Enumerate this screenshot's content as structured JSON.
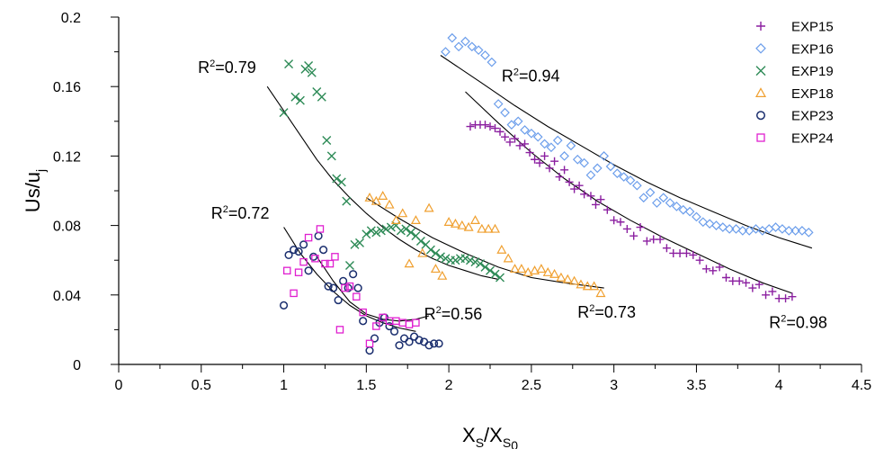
{
  "chart_data": {
    "type": "scatter",
    "xlabel": {
      "main": "X",
      "sub": "S",
      "sep": "/",
      "main2": "X",
      "sub2": "S",
      "subsub2": "0"
    },
    "ylabel": {
      "main": "Us/u",
      "sub": "j"
    },
    "xlim": [
      0,
      4.5
    ],
    "ylim": [
      0,
      0.2
    ],
    "x_ticks": [
      "0",
      "0.5",
      "1",
      "1.5",
      "2",
      "2.5",
      "3",
      "3.5",
      "4",
      "4.5"
    ],
    "y_ticks": [
      "0",
      "0.04",
      "0.08",
      "0.12",
      "0.16",
      "0.2"
    ],
    "grid": false,
    "legend_position": "top-right",
    "series": [
      {
        "name": "EXP15",
        "marker": "plus",
        "color": "#8B1FA0",
        "x": [
          2.13,
          2.16,
          2.19,
          2.22,
          2.25,
          2.28,
          2.31,
          2.34,
          2.37,
          2.4,
          2.43,
          2.46,
          2.49,
          2.52,
          2.55,
          2.58,
          2.61,
          2.64,
          2.67,
          2.7,
          2.73,
          2.76,
          2.79,
          2.82,
          2.86,
          2.89,
          2.92,
          2.96,
          3.0,
          3.04,
          3.08,
          3.12,
          3.16,
          3.2,
          3.24,
          3.28,
          3.32,
          3.36,
          3.4,
          3.44,
          3.48,
          3.52,
          3.56,
          3.6,
          3.64,
          3.68,
          3.72,
          3.76,
          3.8,
          3.84,
          3.88,
          3.92,
          3.96,
          4.0,
          4.04,
          4.08
        ],
        "y": [
          0.137,
          0.138,
          0.138,
          0.138,
          0.137,
          0.136,
          0.134,
          0.131,
          0.128,
          0.13,
          0.126,
          0.127,
          0.122,
          0.118,
          0.116,
          0.12,
          0.113,
          0.117,
          0.108,
          0.112,
          0.105,
          0.101,
          0.103,
          0.098,
          0.097,
          0.092,
          0.095,
          0.089,
          0.083,
          0.082,
          0.078,
          0.074,
          0.079,
          0.071,
          0.072,
          0.072,
          0.067,
          0.064,
          0.064,
          0.064,
          0.063,
          0.06,
          0.055,
          0.054,
          0.056,
          0.05,
          0.048,
          0.048,
          0.047,
          0.044,
          0.046,
          0.04,
          0.042,
          0.038,
          0.038,
          0.039
        ]
      },
      {
        "name": "EXP16",
        "marker": "diamond",
        "color": "#6C9EEB",
        "x": [
          1.98,
          2.02,
          2.06,
          2.1,
          2.14,
          2.18,
          2.22,
          2.26,
          2.3,
          2.34,
          2.38,
          2.42,
          2.46,
          2.5,
          2.54,
          2.58,
          2.62,
          2.66,
          2.7,
          2.74,
          2.78,
          2.82,
          2.86,
          2.9,
          2.94,
          2.98,
          3.02,
          3.06,
          3.1,
          3.14,
          3.18,
          3.22,
          3.26,
          3.3,
          3.34,
          3.38,
          3.42,
          3.46,
          3.5,
          3.54,
          3.58,
          3.62,
          3.66,
          3.7,
          3.74,
          3.78,
          3.82,
          3.86,
          3.9,
          3.94,
          3.98,
          4.02,
          4.06,
          4.1,
          4.14,
          4.18
        ],
        "y": [
          0.18,
          0.188,
          0.183,
          0.186,
          0.183,
          0.181,
          0.178,
          0.174,
          0.15,
          0.145,
          0.138,
          0.14,
          0.135,
          0.133,
          0.131,
          0.127,
          0.125,
          0.129,
          0.12,
          0.126,
          0.118,
          0.116,
          0.109,
          0.113,
          0.12,
          0.114,
          0.11,
          0.108,
          0.106,
          0.103,
          0.096,
          0.099,
          0.093,
          0.096,
          0.093,
          0.091,
          0.089,
          0.088,
          0.085,
          0.082,
          0.081,
          0.08,
          0.079,
          0.078,
          0.078,
          0.077,
          0.077,
          0.078,
          0.077,
          0.078,
          0.079,
          0.078,
          0.077,
          0.077,
          0.077,
          0.076
        ]
      },
      {
        "name": "EXP19",
        "marker": "cross",
        "color": "#2E8B57",
        "x": [
          1.0,
          1.03,
          1.07,
          1.1,
          1.13,
          1.15,
          1.17,
          1.2,
          1.23,
          1.26,
          1.29,
          1.32,
          1.35,
          1.38,
          1.4,
          1.43,
          1.46,
          1.5,
          1.53,
          1.56,
          1.59,
          1.62,
          1.65,
          1.68,
          1.71,
          1.74,
          1.77,
          1.8,
          1.83,
          1.86,
          1.89,
          1.92,
          1.95,
          1.98,
          2.01,
          2.04,
          2.07,
          2.1,
          2.13,
          2.16,
          2.19,
          2.22,
          2.25,
          2.28,
          2.31
        ],
        "y": [
          0.145,
          0.173,
          0.154,
          0.152,
          0.17,
          0.172,
          0.168,
          0.157,
          0.154,
          0.129,
          0.12,
          0.107,
          0.105,
          0.094,
          0.057,
          0.069,
          0.07,
          0.075,
          0.077,
          0.076,
          0.077,
          0.078,
          0.079,
          0.08,
          0.077,
          0.078,
          0.076,
          0.074,
          0.071,
          0.069,
          0.066,
          0.064,
          0.062,
          0.061,
          0.06,
          0.06,
          0.061,
          0.061,
          0.06,
          0.059,
          0.058,
          0.056,
          0.054,
          0.052,
          0.05
        ]
      },
      {
        "name": "EXP18",
        "marker": "triangle",
        "color": "#F0A030",
        "x": [
          1.52,
          1.56,
          1.6,
          1.64,
          1.68,
          1.72,
          1.76,
          1.8,
          1.84,
          1.88,
          1.92,
          1.96,
          2.0,
          2.04,
          2.08,
          2.12,
          2.16,
          2.2,
          2.24,
          2.28,
          2.32,
          2.36,
          2.4,
          2.44,
          2.48,
          2.52,
          2.56,
          2.6,
          2.64,
          2.68,
          2.72,
          2.76,
          2.8,
          2.84,
          2.88,
          2.92
        ],
        "y": [
          0.096,
          0.094,
          0.097,
          0.092,
          0.083,
          0.087,
          0.058,
          0.083,
          0.064,
          0.09,
          0.055,
          0.051,
          0.082,
          0.081,
          0.08,
          0.079,
          0.083,
          0.078,
          0.078,
          0.078,
          0.066,
          0.061,
          0.055,
          0.055,
          0.053,
          0.054,
          0.055,
          0.053,
          0.052,
          0.05,
          0.049,
          0.048,
          0.046,
          0.045,
          0.045,
          0.041
        ]
      },
      {
        "name": "EXP23",
        "marker": "circle",
        "color": "#1A2E6E",
        "x": [
          1.0,
          1.03,
          1.06,
          1.09,
          1.12,
          1.15,
          1.18,
          1.21,
          1.24,
          1.27,
          1.3,
          1.33,
          1.36,
          1.39,
          1.42,
          1.45,
          1.48,
          1.52,
          1.55,
          1.58,
          1.61,
          1.64,
          1.67,
          1.7,
          1.73,
          1.76,
          1.79,
          1.82,
          1.85,
          1.88,
          1.91,
          1.94
        ],
        "y": [
          0.034,
          0.063,
          0.066,
          0.065,
          0.069,
          0.054,
          0.062,
          0.074,
          0.066,
          0.045,
          0.044,
          0.037,
          0.048,
          0.044,
          0.052,
          0.044,
          0.025,
          0.008,
          0.015,
          0.024,
          0.027,
          0.022,
          0.019,
          0.011,
          0.015,
          0.013,
          0.016,
          0.014,
          0.013,
          0.011,
          0.012,
          0.012
        ]
      },
      {
        "name": "EXP24",
        "marker": "square",
        "color": "#E020D0",
        "x": [
          1.02,
          1.06,
          1.09,
          1.12,
          1.15,
          1.19,
          1.22,
          1.25,
          1.28,
          1.31,
          1.34,
          1.37,
          1.4,
          1.44,
          1.48,
          1.52,
          1.56,
          1.6,
          1.64,
          1.68,
          1.72,
          1.76,
          1.8
        ],
        "y": [
          0.054,
          0.041,
          0.053,
          0.059,
          0.073,
          0.061,
          0.078,
          0.058,
          0.058,
          0.062,
          0.02,
          0.044,
          0.045,
          0.039,
          0.03,
          0.012,
          0.022,
          0.027,
          0.025,
          0.025,
          0.024,
          0.023,
          0.024
        ]
      }
    ],
    "fit_lines": [
      {
        "label": "R²=0.79",
        "label_pos": "top-left",
        "x": [
          0.9,
          1.0,
          1.1,
          1.2,
          1.3,
          1.4,
          1.5,
          1.6,
          1.7,
          1.8,
          1.9,
          2.0,
          2.1,
          2.2,
          2.3
        ],
        "y": [
          0.16,
          0.146,
          0.132,
          0.118,
          0.106,
          0.096,
          0.087,
          0.079,
          0.072,
          0.066,
          0.061,
          0.057,
          0.054,
          0.051,
          0.049
        ]
      },
      {
        "label": "R²=0.94",
        "label_pos": "top",
        "x": [
          1.95,
          2.2,
          2.4,
          2.6,
          2.8,
          3.0,
          3.2,
          3.4,
          3.6,
          3.8,
          4.0,
          4.2
        ],
        "y": [
          0.178,
          0.162,
          0.149,
          0.137,
          0.126,
          0.115,
          0.105,
          0.096,
          0.088,
          0.08,
          0.073,
          0.067
        ]
      },
      {
        "label": "R²=0.98",
        "label_pos": "bottom-right",
        "x": [
          2.1,
          2.3,
          2.5,
          2.7,
          2.9,
          3.1,
          3.3,
          3.5,
          3.7,
          3.9,
          4.08
        ],
        "y": [
          0.157,
          0.139,
          0.122,
          0.107,
          0.094,
          0.083,
          0.073,
          0.064,
          0.055,
          0.047,
          0.041
        ]
      },
      {
        "label": "R²=0.73",
        "label_pos": "bottom-right",
        "x": [
          1.5,
          1.7,
          1.9,
          2.1,
          2.3,
          2.5,
          2.7,
          2.94
        ],
        "y": [
          0.096,
          0.084,
          0.073,
          0.064,
          0.056,
          0.05,
          0.047,
          0.044
        ]
      },
      {
        "label": "R²=0.72",
        "label_pos": "top-left",
        "x": [
          1.0,
          1.1,
          1.2,
          1.3,
          1.4,
          1.5,
          1.6,
          1.7,
          1.8
        ],
        "y": [
          0.079,
          0.064,
          0.052,
          0.042,
          0.034,
          0.028,
          0.024,
          0.021,
          0.019
        ]
      },
      {
        "label": "R²=0.56",
        "label_pos": "right",
        "x": [
          1.2,
          1.3,
          1.4,
          1.5,
          1.6,
          1.7,
          1.8,
          1.88
        ],
        "y": [
          0.062,
          0.048,
          0.036,
          0.029,
          0.026,
          0.025,
          0.026,
          0.028
        ]
      }
    ],
    "r2_labels": [
      {
        "text_main": "R",
        "sup": "2",
        "text_rest": "=0.79",
        "x": 0.48,
        "y": 0.168
      },
      {
        "text_main": "R",
        "sup": "2",
        "text_rest": "=0.94",
        "x": 2.32,
        "y": 0.163
      },
      {
        "text_main": "R",
        "sup": "2",
        "text_rest": "=0.98",
        "x": 3.94,
        "y": 0.021
      },
      {
        "text_main": "R",
        "sup": "2",
        "text_rest": "=0.73",
        "x": 2.78,
        "y": 0.027
      },
      {
        "text_main": "R",
        "sup": "2",
        "text_rest": "=0.72",
        "x": 0.56,
        "y": 0.084
      },
      {
        "text_main": "R",
        "sup": "2",
        "text_rest": "=0.56",
        "x": 1.85,
        "y": 0.026
      }
    ]
  }
}
